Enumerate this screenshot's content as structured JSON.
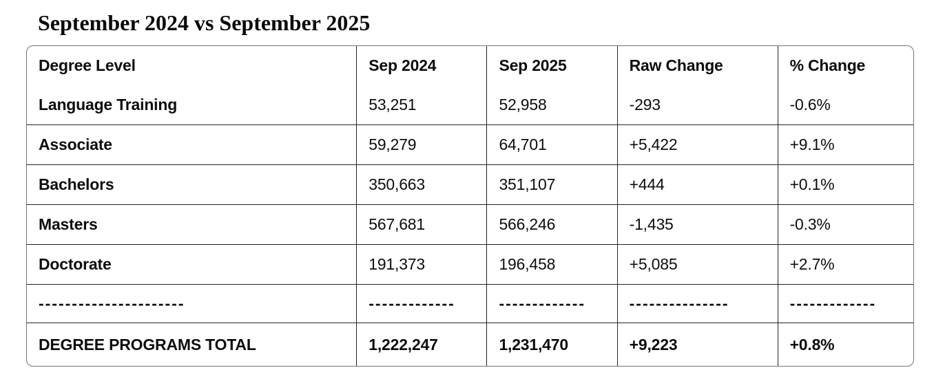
{
  "page": {
    "title": "September 2024 vs September 2025"
  },
  "table": {
    "columns": [
      "Degree Level",
      "Sep 2024",
      "Sep 2025",
      "Raw Change",
      "% Change"
    ],
    "rows": [
      [
        "Language Training",
        "53,251",
        "52,958",
        "-293",
        "-0.6%"
      ],
      [
        "Associate",
        "59,279",
        "64,701",
        "+5,422",
        "+9.1%"
      ],
      [
        "Bachelors",
        "350,663",
        "351,107",
        "+444",
        "+0.1%"
      ],
      [
        "Masters",
        "567,681",
        "566,246",
        "-1,435",
        "-0.3%"
      ],
      [
        "Doctorate",
        "191,373",
        "196,458",
        "+5,085",
        "+2.7%"
      ]
    ],
    "separator": [
      "----------------------",
      "-------------",
      "-------------",
      "---------------",
      "-------------"
    ],
    "total": [
      "DEGREE PROGRAMS TOTAL",
      "1,222,247",
      "1,231,470",
      "+9,223",
      "+0.8%"
    ]
  },
  "colors": {
    "outer_border": "#73737b",
    "inner_border": "#222222",
    "text": "#0d0d0d",
    "background": "#ffffff"
  },
  "chart_data": {
    "type": "table",
    "title": "September 2024 vs September 2025",
    "categories": [
      "Language Training",
      "Associate",
      "Bachelors",
      "Masters",
      "Doctorate",
      "DEGREE PROGRAMS TOTAL"
    ],
    "series": [
      {
        "name": "Sep 2024",
        "values": [
          53251,
          59279,
          350663,
          567681,
          191373,
          1222247
        ]
      },
      {
        "name": "Sep 2025",
        "values": [
          52958,
          64701,
          351107,
          566246,
          196458,
          1231470
        ]
      },
      {
        "name": "Raw Change",
        "values": [
          -293,
          5422,
          444,
          -1435,
          5085,
          9223
        ]
      },
      {
        "name": "% Change",
        "values": [
          -0.6,
          9.1,
          0.1,
          -0.3,
          2.7,
          0.8
        ]
      }
    ]
  }
}
